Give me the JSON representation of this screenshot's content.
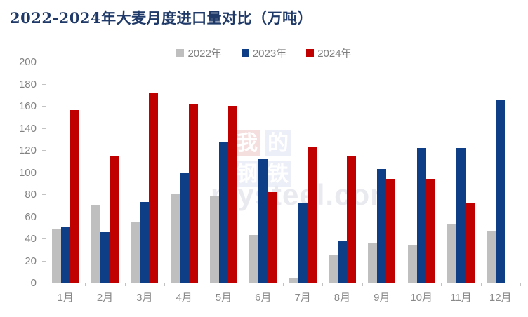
{
  "title": "2022-2024年大麦月度进口量对比（万吨）",
  "legend": [
    {
      "label": "2022年",
      "color": "#bfbfbf"
    },
    {
      "label": "2023年",
      "color": "#0e3f86"
    },
    {
      "label": "2024年",
      "color": "#c00000"
    }
  ],
  "watermark": {
    "char_1": "我",
    "char_2": "的",
    "char_3": "钢",
    "char_4": "铁",
    "text": "mysteel.com",
    "char_1_bg": "#f5dede",
    "char_other_bg": "#edeff8"
  },
  "chart_data": {
    "type": "bar",
    "title": "2022-2024年大麦月度进口量对比（万吨）",
    "categories": [
      "1月",
      "2月",
      "3月",
      "4月",
      "5月",
      "6月",
      "7月",
      "8月",
      "9月",
      "10月",
      "11月",
      "12月"
    ],
    "series": [
      {
        "name": "2022年",
        "color": "#bfbfbf",
        "values": [
          48,
          70,
          55,
          80,
          79,
          43,
          4,
          25,
          36,
          34,
          53,
          47
        ]
      },
      {
        "name": "2023年",
        "color": "#0e3f86",
        "values": [
          50,
          46,
          73,
          100,
          127,
          112,
          72,
          38,
          103,
          122,
          122,
          165
        ]
      },
      {
        "name": "2024年",
        "color": "#c00000",
        "values": [
          156,
          114,
          172,
          161,
          160,
          82,
          123,
          115,
          94,
          94,
          72,
          null
        ]
      }
    ],
    "xlabel": "",
    "ylabel": "",
    "ylim": [
      0,
      200
    ],
    "ytick_step": 20,
    "yticks": [
      0,
      20,
      40,
      60,
      80,
      100,
      120,
      140,
      160,
      180,
      200
    ],
    "grid": false,
    "legend_position": "top-center",
    "unit": "万吨"
  }
}
